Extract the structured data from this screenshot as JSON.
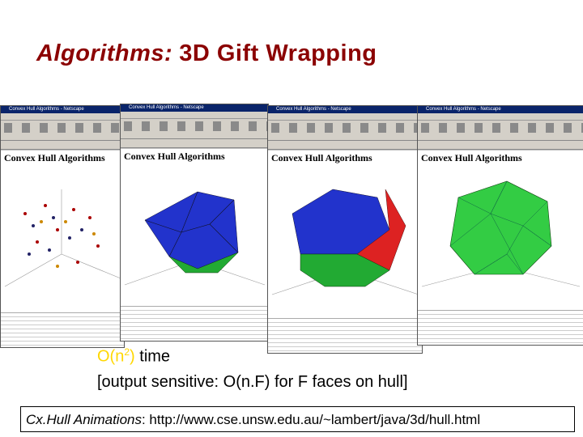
{
  "title": {
    "emphasis": "Algorithms:",
    "rest": "3D Gift Wrapping"
  },
  "screenshots": [
    {
      "window_title": "Convex Hull Algorithms - Netscape",
      "heading": "Convex Hull Algorithms"
    },
    {
      "window_title": "Convex Hull Algorithms - Netscape",
      "heading": "Convex Hull Algorithms"
    },
    {
      "window_title": "Convex Hull Algorithms - Netscape",
      "heading": "Convex Hull Algorithms"
    },
    {
      "window_title": "Convex Hull Algorithms - Netscape",
      "heading": "Convex Hull Algorithms"
    }
  ],
  "complexity": {
    "prefix": "O(n",
    "exponent": "2",
    "suffix": ")",
    "rest": "time"
  },
  "note": "[output sensitive: O(n.F) for F faces on hull]",
  "link": {
    "label": "Cx.Hull Animations",
    "url": ": http://www.cse.unsw.edu.au/~lambert/java/3d/hull.html"
  }
}
